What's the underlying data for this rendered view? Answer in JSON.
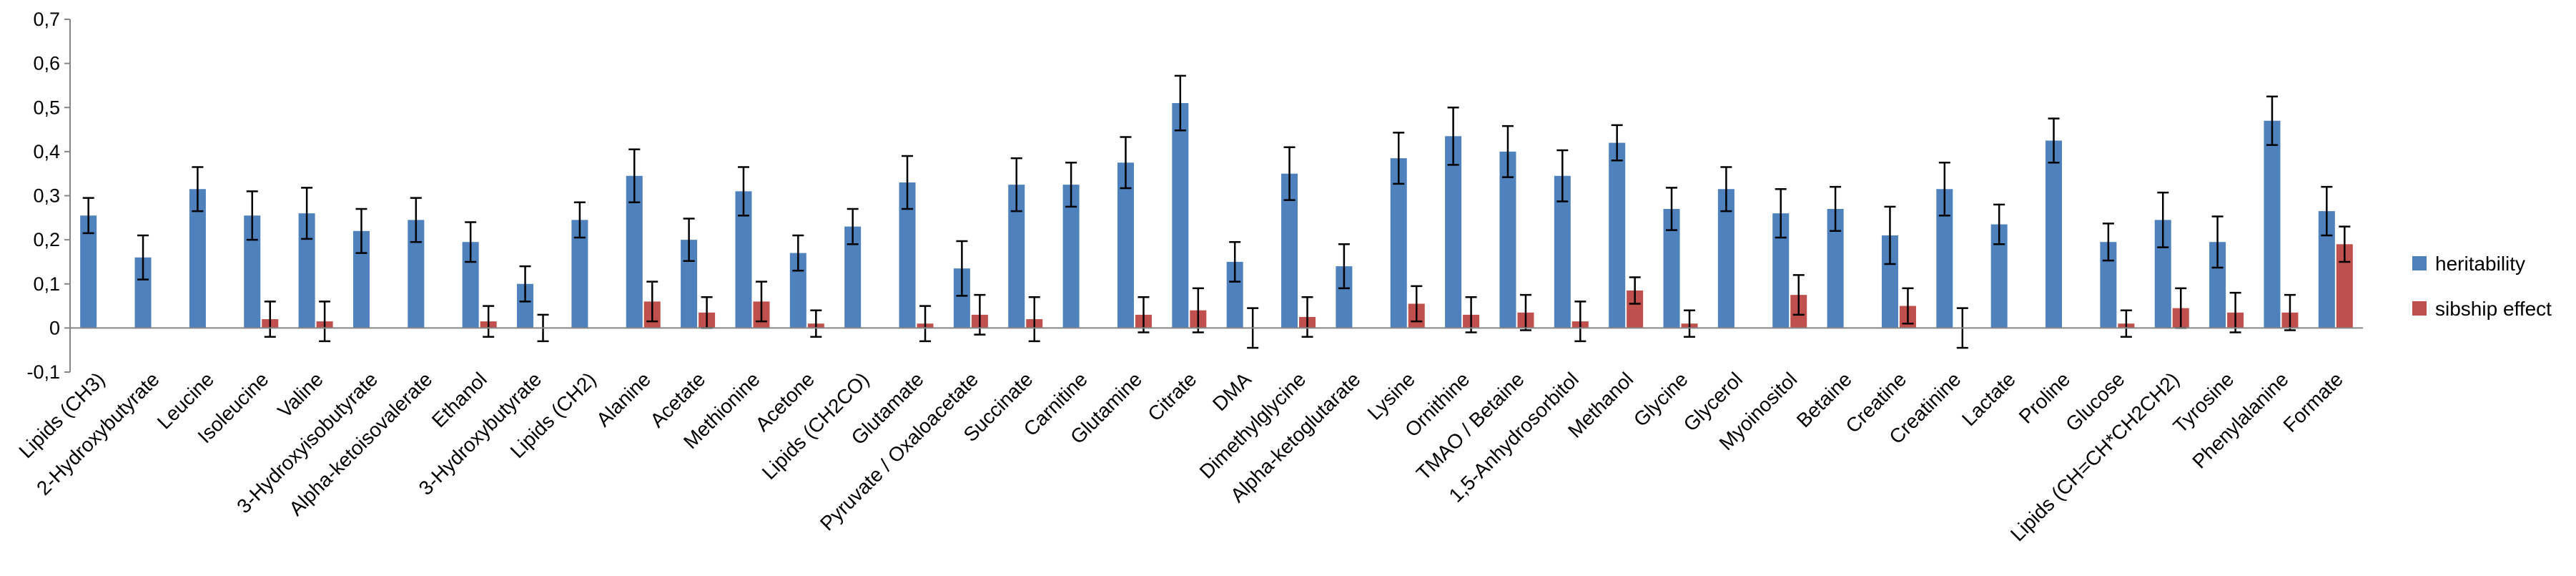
{
  "chart_data": {
    "type": "bar",
    "title": "",
    "xlabel": "",
    "ylabel": "",
    "ylim": [
      -0.1,
      0.7
    ],
    "yticks": [
      -0.1,
      0,
      0.1,
      0.2,
      0.3,
      0.4,
      0.5,
      0.6,
      0.7
    ],
    "ytick_labels": [
      "-0,1",
      "0",
      "0,1",
      "0,2",
      "0,3",
      "0,4",
      "0,5",
      "0,6",
      "0,7"
    ],
    "grid": false,
    "legend": "right",
    "categories": [
      "Lipids (CH3)",
      "2-Hydroxybutyrate",
      "Leucine",
      "Isoleucine",
      "Valine",
      "3-Hydroxyisobutyrate",
      "Alpha-ketoisovalerate",
      "Ethanol",
      "3-Hydroxybutyrate",
      "Lipids (CH2)",
      "Alanine",
      "Acetate",
      "Methionine",
      "Acetone",
      "Lipids (CH2CO)",
      "Glutamate",
      "Pyruvate / Oxaloacetate",
      "Succinate",
      "Carnitine",
      "Glutamine",
      "Citrate",
      "DMA",
      "Dimethylglycine",
      "Alpha-ketoglutarate",
      "Lysine",
      "Ornithine",
      "TMAO / Betaine",
      "1,5-Anhydrosorbitol",
      "Methanol",
      "Glycine",
      "Glycerol",
      "Myoinositol",
      "Betaine",
      "Creatine",
      "Creatinine",
      "Lactate",
      "Proline",
      "Glucose",
      "Lipids (CH=CH*CH2CH2)",
      "Tyrosine",
      "Phenylalanine",
      "Formate"
    ],
    "series": [
      {
        "name": "heritability",
        "color": "#4f81bd",
        "values": [
          0.255,
          0.16,
          0.315,
          0.255,
          0.26,
          0.22,
          0.245,
          0.195,
          0.1,
          0.245,
          0.345,
          0.2,
          0.31,
          0.17,
          0.23,
          0.33,
          0.135,
          0.325,
          0.325,
          0.375,
          0.51,
          0.15,
          0.35,
          0.14,
          0.385,
          0.435,
          0.4,
          0.345,
          0.42,
          0.27,
          0.315,
          0.26,
          0.27,
          0.21,
          0.315,
          0.235,
          0.425,
          0.195,
          0.245,
          0.195,
          0.47,
          0.265
        ],
        "errors": [
          0.04,
          0.05,
          0.05,
          0.055,
          0.058,
          0.05,
          0.05,
          0.045,
          0.04,
          0.04,
          0.06,
          0.048,
          0.055,
          0.04,
          0.04,
          0.06,
          0.062,
          0.06,
          0.05,
          0.058,
          0.062,
          0.045,
          0.06,
          0.05,
          0.058,
          0.065,
          0.058,
          0.058,
          0.04,
          0.048,
          0.05,
          0.055,
          0.05,
          0.065,
          0.06,
          0.045,
          0.05,
          0.042,
          0.062,
          0.058,
          0.055,
          0.055
        ]
      },
      {
        "name": "sibship effect",
        "color": "#c0504d",
        "values": [
          0,
          0,
          0,
          0.02,
          0.015,
          0,
          0,
          0.015,
          0,
          0,
          0.06,
          0.035,
          0.06,
          0.01,
          0,
          0.01,
          0.03,
          0.02,
          0,
          0.03,
          0.04,
          0,
          0.025,
          0,
          0.055,
          0.03,
          0.035,
          0.015,
          0.085,
          0.01,
          0,
          0.075,
          0,
          0.05,
          0,
          0,
          0,
          0.01,
          0.045,
          0.035,
          0.035,
          0.19
        ],
        "errors": [
          0,
          0,
          0,
          0.04,
          0.045,
          0,
          0,
          0.035,
          0.03,
          0,
          0.045,
          0.035,
          0.045,
          0.03,
          0,
          0.04,
          0.045,
          0.05,
          0,
          0.04,
          0.05,
          0.045,
          0.045,
          0,
          0.04,
          0.04,
          0.04,
          0.045,
          0.03,
          0.03,
          0,
          0.045,
          0,
          0.04,
          0.045,
          0,
          0,
          0.03,
          0.045,
          0.045,
          0.04,
          0.04
        ]
      }
    ]
  }
}
